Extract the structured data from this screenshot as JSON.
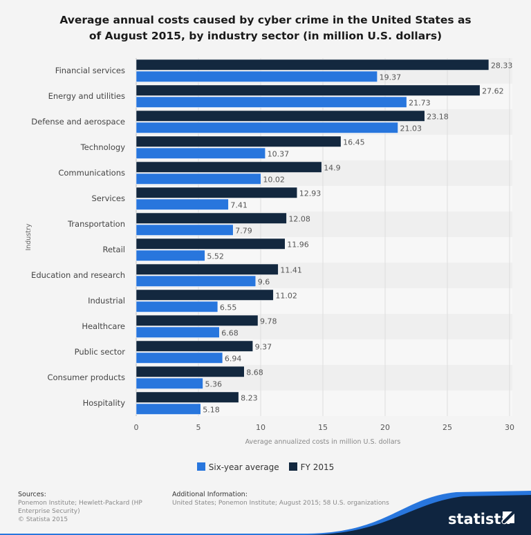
{
  "chart_data": {
    "type": "bar",
    "orientation": "horizontal",
    "title": "Average annual costs caused by cyber crime in the United States as of August 2015, by industry sector (in million U.S. dollars)",
    "xlabel": "Average annualized costs in million U.S. dollars",
    "ylabel": "Industry",
    "xlim": [
      0,
      30
    ],
    "xticks": [
      0,
      5,
      10,
      15,
      20,
      25,
      30
    ],
    "grid": true,
    "legend_position": "bottom",
    "categories": [
      "Financial services",
      "Energy and utilities",
      "Defense and aerospace",
      "Technology",
      "Communications",
      "Services",
      "Transportation",
      "Retail",
      "Education and research",
      "Industrial",
      "Healthcare",
      "Public sector",
      "Consumer products",
      "Hospitality"
    ],
    "series": [
      {
        "name": "FY 2015",
        "color": "#13283f",
        "values": [
          28.33,
          27.62,
          23.18,
          16.45,
          14.9,
          12.93,
          12.08,
          11.96,
          11.41,
          11.02,
          9.78,
          9.37,
          8.68,
          8.23
        ]
      },
      {
        "name": "Six-year average",
        "color": "#2876dd",
        "values": [
          19.37,
          21.73,
          21.03,
          10.37,
          10.02,
          7.41,
          7.79,
          5.52,
          9.6,
          6.55,
          6.68,
          6.94,
          5.36,
          5.18
        ]
      }
    ]
  },
  "legend": [
    "Six-year average",
    "FY 2015"
  ],
  "footer": {
    "sources_label": "Sources:",
    "sources_text": "Ponemon Institute; Hewlett-Packard (HP Enterprise Security)",
    "copyright": "© Statista 2015",
    "additional_label": "Additional Information:",
    "additional_text": "United States; Ponemon Institute; August 2015; 58 U.S. organizations",
    "logo": "statista"
  }
}
